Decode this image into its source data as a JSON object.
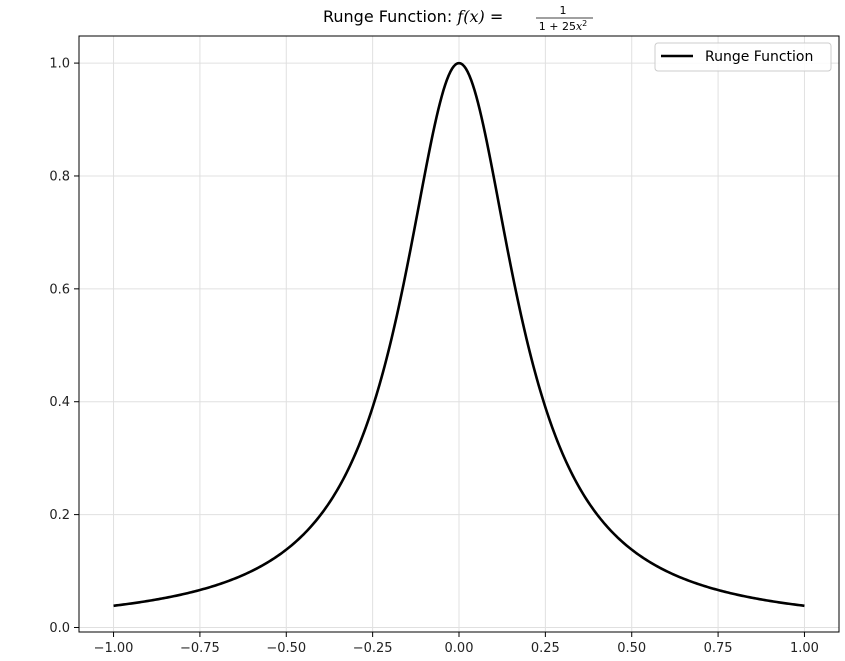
{
  "chart_data": {
    "type": "line",
    "title": {
      "prefix": "Runge Function: ",
      "lhs": "f(x)",
      "equals": " = ",
      "numerator": "1",
      "denominator_a": "1 + 25",
      "denominator_b": "x",
      "denominator_exp": "2"
    },
    "xlabel": "",
    "ylabel": "",
    "xlim": [
      -1.1,
      1.1
    ],
    "ylim": [
      -0.008,
      1.048
    ],
    "grid": true,
    "legend_position": "top-right",
    "x_ticks": [
      -1.0,
      -0.75,
      -0.5,
      -0.25,
      0.0,
      0.25,
      0.5,
      0.75,
      1.0
    ],
    "x_tick_labels": [
      "−1.00",
      "−0.75",
      "−0.50",
      "−0.25",
      "0.00",
      "0.25",
      "0.50",
      "0.75",
      "1.00"
    ],
    "y_ticks": [
      0.0,
      0.2,
      0.4,
      0.6,
      0.8,
      1.0
    ],
    "y_tick_labels": [
      "0.0",
      "0.2",
      "0.4",
      "0.6",
      "0.8",
      "1.0"
    ],
    "series": [
      {
        "name": "Runge Function",
        "color": "#000000",
        "x": [
          -1.0,
          -0.9,
          -0.8,
          -0.7,
          -0.6,
          -0.5,
          -0.45,
          -0.4,
          -0.35,
          -0.3,
          -0.25,
          -0.2,
          -0.15,
          -0.1,
          -0.05,
          0.0,
          0.05,
          0.1,
          0.15,
          0.2,
          0.25,
          0.3,
          0.35,
          0.4,
          0.45,
          0.5,
          0.6,
          0.7,
          0.8,
          0.9,
          1.0
        ],
        "y": [
          0.0385,
          0.0471,
          0.0588,
          0.0755,
          0.1,
          0.1379,
          0.1649,
          0.2,
          0.2462,
          0.3077,
          0.3902,
          0.5,
          0.64,
          0.8,
          0.9412,
          1.0,
          0.9412,
          0.8,
          0.64,
          0.5,
          0.3902,
          0.3077,
          0.2462,
          0.2,
          0.1649,
          0.1379,
          0.1,
          0.0755,
          0.0588,
          0.0471,
          0.0385
        ]
      }
    ]
  }
}
